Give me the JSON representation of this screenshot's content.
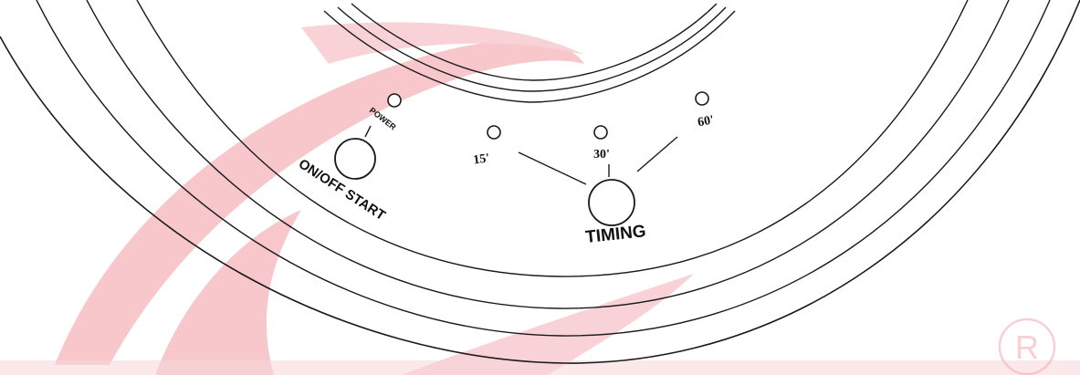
{
  "panel": {
    "power_indicator_label": "POWER",
    "onoff_button_label": "ON/OFF START",
    "timing_button_label": "TIMING",
    "timer_options": [
      "15'",
      "30'",
      "60'"
    ],
    "registered_mark": "R"
  },
  "colors": {
    "watermark": "#f2a9b0",
    "outline": "#1a1a1a"
  }
}
